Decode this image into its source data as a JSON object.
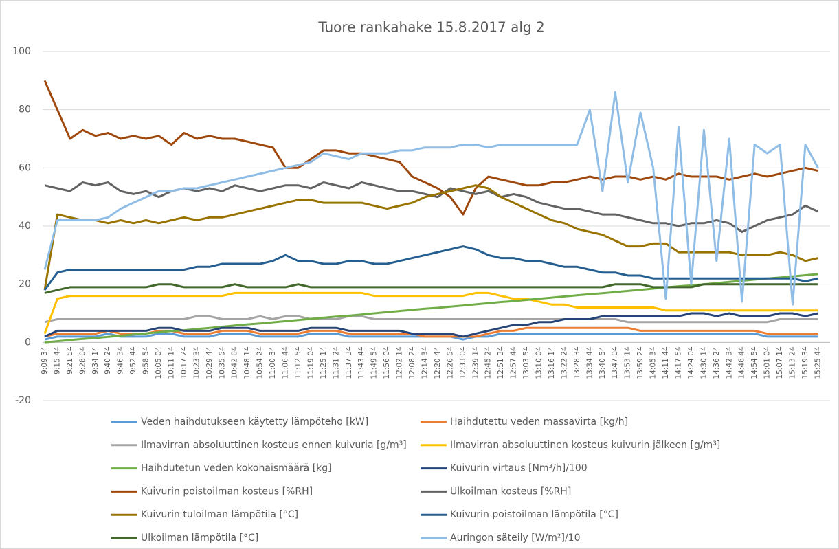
{
  "chart_data": {
    "type": "line",
    "title": "Tuore rankahake 15.8.2017 alg 2",
    "categories": [
      "9:09:34",
      "9:15:44",
      "9:21:54",
      "9:28:04",
      "9:34:14",
      "9:40:24",
      "9:46:34",
      "9:52:44",
      "9:58:54",
      "10:05:04",
      "10:11:14",
      "10:17:24",
      "10:23:34",
      "10:29:44",
      "10:35:54",
      "10:42:04",
      "10:48:14",
      "10:54:24",
      "11:00:34",
      "11:06:44",
      "11:12:54",
      "11:19:04",
      "11:25:14",
      "11:31:24",
      "11:37:34",
      "11:43:44",
      "11:49:54",
      "11:56:04",
      "12:02:14",
      "12:08:24",
      "12:14:34",
      "12:20:44",
      "12:26:54",
      "12:33:04",
      "12:39:14",
      "12:45:24",
      "12:51:34",
      "12:57:44",
      "13:03:54",
      "13:10:04",
      "13:16:14",
      "13:22:24",
      "13:28:34",
      "13:34:44",
      "13:40:54",
      "13:47:04",
      "13:53:14",
      "13:59:24",
      "14:05:34",
      "14:11:44",
      "14:17:54",
      "14:24:04",
      "14:30:14",
      "14:36:24",
      "14:42:34",
      "14:48:44",
      "14:54:54",
      "15:01:04",
      "15:07:14",
      "15:13:24",
      "15:19:34",
      "15:25:44"
    ],
    "ylim": [
      -20,
      100
    ],
    "yticks": [
      -20,
      0,
      20,
      40,
      60,
      80,
      100
    ],
    "grid": true,
    "series": [
      {
        "name": "Veden haihdutukseen käytetty lämpöteho [kW]",
        "color": "#5b9bd5",
        "values": [
          1,
          2,
          2,
          2,
          2,
          3,
          2,
          2,
          2,
          3,
          3,
          2,
          2,
          2,
          3,
          3,
          3,
          2,
          2,
          2,
          2,
          3,
          3,
          3,
          2,
          2,
          2,
          2,
          2,
          2,
          2,
          2,
          2,
          1,
          2,
          2,
          3,
          3,
          3,
          3,
          3,
          3,
          3,
          3,
          3,
          3,
          3,
          3,
          3,
          3,
          3,
          3,
          3,
          3,
          3,
          3,
          3,
          2,
          2,
          2,
          2,
          2
        ]
      },
      {
        "name": "Haihdutettu veden massavirta [kg/h]",
        "color": "#ed7d31",
        "values": [
          2,
          3,
          3,
          3,
          3,
          4,
          3,
          3,
          3,
          4,
          4,
          3,
          3,
          3,
          4,
          4,
          4,
          3,
          3,
          3,
          3,
          4,
          4,
          4,
          3,
          3,
          3,
          3,
          3,
          3,
          2,
          2,
          2,
          2,
          2,
          3,
          4,
          4,
          5,
          5,
          5,
          5,
          5,
          5,
          5,
          5,
          5,
          4,
          4,
          4,
          4,
          4,
          4,
          4,
          4,
          4,
          4,
          3,
          3,
          3,
          3,
          3
        ]
      },
      {
        "name": "Ilmavirran absoluuttinen kosteus ennen kuivuria [g/m³]",
        "color": "#a5a5a5",
        "values": [
          7,
          8,
          8,
          8,
          8,
          8,
          8,
          8,
          8,
          8,
          8,
          8,
          9,
          9,
          8,
          8,
          8,
          9,
          8,
          9,
          9,
          8,
          8,
          8,
          9,
          9,
          8,
          8,
          8,
          8,
          8,
          8,
          8,
          8,
          8,
          8,
          8,
          8,
          8,
          8,
          8,
          8,
          8,
          8,
          8,
          8,
          7,
          7,
          7,
          7,
          7,
          7,
          7,
          7,
          7,
          7,
          7,
          7,
          8,
          8,
          8,
          8
        ]
      },
      {
        "name": "Ilmavirran absoluuttinen kosteus kuivurin jälkeen [g/m³]",
        "color": "#ffc000",
        "values": [
          3,
          15,
          16,
          16,
          16,
          16,
          16,
          16,
          16,
          16,
          16,
          16,
          16,
          16,
          16,
          17,
          17,
          17,
          17,
          17,
          17,
          17,
          17,
          17,
          17,
          17,
          16,
          16,
          16,
          16,
          16,
          16,
          16,
          16,
          17,
          17,
          16,
          15,
          15,
          14,
          13,
          13,
          12,
          12,
          12,
          12,
          12,
          12,
          12,
          11,
          11,
          11,
          11,
          11,
          11,
          11,
          11,
          11,
          11,
          11,
          11,
          11
        ]
      },
      {
        "name": "Haihdutetun veden kokonaismäärä [kg]",
        "color": "#70ad47",
        "values": [
          0,
          0.4,
          0.8,
          1.2,
          1.5,
          1.9,
          2.3,
          2.7,
          3.1,
          3.5,
          3.9,
          4.2,
          4.6,
          5.0,
          5.4,
          5.8,
          6.2,
          6.5,
          6.9,
          7.3,
          7.7,
          8.1,
          8.5,
          8.9,
          9.2,
          9.6,
          10.0,
          10.4,
          10.8,
          11.2,
          11.6,
          11.9,
          12.3,
          12.7,
          13.1,
          13.5,
          13.9,
          14.2,
          14.6,
          15.0,
          15.4,
          15.8,
          16.2,
          16.6,
          16.9,
          17.3,
          17.7,
          18.1,
          18.5,
          18.9,
          19.3,
          19.6,
          20.0,
          20.4,
          20.8,
          21.2,
          21.6,
          22.0,
          22.3,
          22.7,
          23.1,
          23.5
        ]
      },
      {
        "name": "Kuivurin virtaus [Nm³/h]/100",
        "color": "#264478",
        "values": [
          2,
          4,
          4,
          4,
          4,
          4,
          4,
          4,
          4,
          5,
          5,
          4,
          4,
          4,
          5,
          5,
          5,
          4,
          4,
          4,
          4,
          5,
          5,
          5,
          4,
          4,
          4,
          4,
          4,
          3,
          3,
          3,
          3,
          2,
          3,
          4,
          5,
          6,
          6,
          7,
          7,
          8,
          8,
          8,
          9,
          9,
          9,
          9,
          9,
          9,
          9,
          10,
          10,
          9,
          10,
          9,
          9,
          9,
          10,
          10,
          9,
          10
        ]
      },
      {
        "name": "Kuivurin poistoilman kosteus [%RH]",
        "color": "#9e480e",
        "values": [
          90,
          80,
          70,
          73,
          71,
          72,
          70,
          71,
          70,
          71,
          68,
          72,
          70,
          71,
          70,
          70,
          69,
          68,
          67,
          60,
          60,
          63,
          66,
          66,
          65,
          65,
          64,
          63,
          62,
          57,
          55,
          53,
          50,
          44,
          53,
          57,
          56,
          55,
          54,
          54,
          55,
          55,
          56,
          57,
          56,
          57,
          57,
          56,
          57,
          56,
          58,
          57,
          57,
          57,
          56,
          57,
          58,
          57,
          58,
          59,
          60,
          59
        ]
      },
      {
        "name": "Ulkoilman kosteus [%RH]",
        "color": "#636363",
        "values": [
          54,
          53,
          52,
          55,
          54,
          55,
          52,
          51,
          52,
          50,
          52,
          53,
          52,
          53,
          52,
          54,
          53,
          52,
          53,
          54,
          54,
          53,
          55,
          54,
          53,
          55,
          54,
          53,
          52,
          52,
          51,
          50,
          53,
          52,
          51,
          52,
          50,
          51,
          50,
          48,
          47,
          46,
          46,
          45,
          44,
          44,
          43,
          42,
          41,
          41,
          40,
          41,
          41,
          42,
          41,
          38,
          40,
          42,
          43,
          44,
          47,
          45
        ]
      },
      {
        "name": "Kuivurin tuloilman lämpötila [°C]",
        "color": "#997300",
        "values": [
          18,
          44,
          43,
          42,
          42,
          41,
          42,
          41,
          42,
          41,
          42,
          43,
          42,
          43,
          43,
          44,
          45,
          46,
          47,
          48,
          49,
          49,
          48,
          48,
          48,
          48,
          47,
          46,
          47,
          48,
          50,
          51,
          52,
          53,
          54,
          53,
          50,
          48,
          46,
          44,
          42,
          41,
          39,
          38,
          37,
          35,
          33,
          33,
          34,
          34,
          31,
          31,
          31,
          31,
          31,
          30,
          30,
          30,
          31,
          30,
          28,
          29
        ]
      },
      {
        "name": "Kuivurin poistoilman lämpötila [°C]",
        "color": "#255e91",
        "values": [
          18,
          24,
          25,
          25,
          25,
          25,
          25,
          25,
          25,
          25,
          25,
          25,
          26,
          26,
          27,
          27,
          27,
          27,
          28,
          30,
          28,
          28,
          27,
          27,
          28,
          28,
          27,
          27,
          28,
          29,
          30,
          31,
          32,
          33,
          32,
          30,
          29,
          29,
          28,
          28,
          27,
          26,
          26,
          25,
          24,
          24,
          23,
          23,
          22,
          22,
          22,
          22,
          22,
          22,
          22,
          22,
          22,
          22,
          22,
          22,
          21,
          22
        ]
      },
      {
        "name": "Ulkoilman lämpötila [°C]",
        "color": "#43682b",
        "values": [
          17,
          18,
          19,
          19,
          19,
          19,
          19,
          19,
          19,
          20,
          20,
          19,
          19,
          19,
          19,
          20,
          19,
          19,
          19,
          19,
          20,
          19,
          19,
          19,
          19,
          19,
          19,
          19,
          19,
          19,
          19,
          19,
          19,
          19,
          19,
          19,
          19,
          19,
          19,
          19,
          19,
          19,
          19,
          19,
          19,
          20,
          20,
          20,
          19,
          19,
          19,
          19,
          20,
          20,
          20,
          20,
          20,
          20,
          20,
          20,
          20,
          20
        ]
      },
      {
        "name": "Auringon säteily [W/m²]/10",
        "color": "#8fbde6",
        "values": [
          25,
          42,
          42,
          42,
          42,
          43,
          46,
          48,
          50,
          52,
          52,
          53,
          53,
          54,
          55,
          56,
          57,
          58,
          59,
          60,
          61,
          62,
          65,
          64,
          63,
          65,
          65,
          65,
          66,
          66,
          67,
          67,
          67,
          68,
          68,
          67,
          68,
          68,
          68,
          68,
          68,
          68,
          68,
          80,
          52,
          86,
          55,
          79,
          60,
          15,
          74,
          20,
          73,
          28,
          70,
          14,
          68,
          65,
          68,
          13,
          68,
          60
        ]
      }
    ]
  }
}
